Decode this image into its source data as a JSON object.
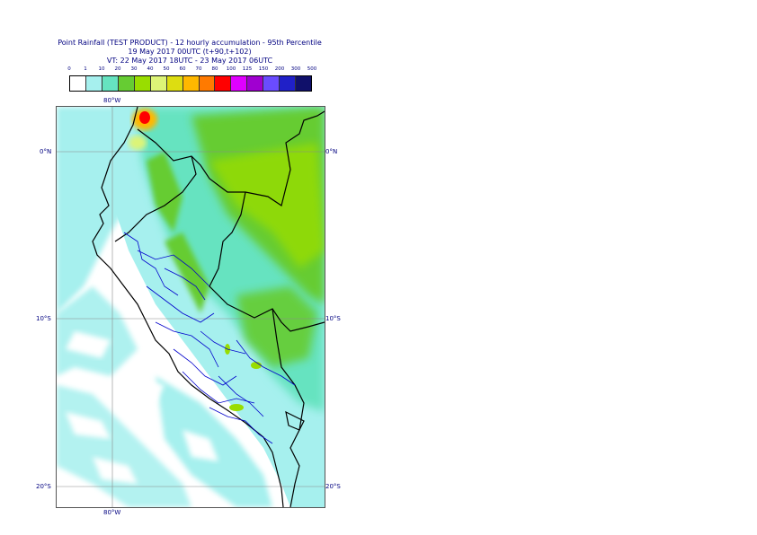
{
  "title": {
    "line1": "Point Rainfall (TEST PRODUCT) - 12 hourly accumulation - 95th Percentile",
    "line2": "19 May 2017 00UTC (t+90,t+102)",
    "line3": "VT: 22 May 2017 18UTC - 23 May 2017 06UTC"
  },
  "legend": {
    "thresholds": [
      "0",
      "1",
      "10",
      "20",
      "30",
      "40",
      "50",
      "60",
      "70",
      "80",
      "100",
      "125",
      "150",
      "200",
      "300",
      "500"
    ],
    "colors": [
      "#ffffff",
      "#a6f0ee",
      "#66e3c0",
      "#66cc33",
      "#99dd00",
      "#ddf477",
      "#dddd11",
      "#ffb800",
      "#ff7a00",
      "#ff0000",
      "#e000ff",
      "#a000d0",
      "#6a4cff",
      "#2020c8",
      "#10106a"
    ]
  },
  "axes": {
    "lon_top": "80°W",
    "lon_bottom": "80°W",
    "lat_0_left": "0°N",
    "lat_0_right": "0°N",
    "lat_10_left": "10°S",
    "lat_10_right": "10°S",
    "lat_20_left": "20°S",
    "lat_20_right": "20°S"
  }
}
